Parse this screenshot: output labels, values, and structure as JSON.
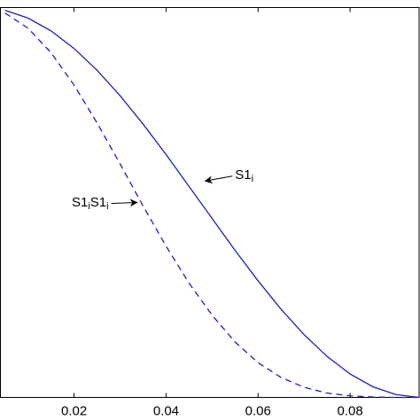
{
  "chart_data": {
    "type": "line",
    "x": [
      0.005,
      0.01,
      0.015,
      0.02,
      0.025,
      0.03,
      0.035,
      0.04,
      0.045,
      0.05,
      0.055,
      0.06,
      0.065,
      0.07,
      0.075,
      0.08,
      0.085,
      0.09,
      0.095
    ],
    "series": [
      {
        "color": "#1f1fb4",
        "style": "solid",
        "values": [
          0.993,
          0.973,
          0.94,
          0.895,
          0.839,
          0.774,
          0.701,
          0.623,
          0.541,
          0.459,
          0.377,
          0.299,
          0.226,
          0.161,
          0.105,
          0.06,
          0.027,
          0.007,
          0
        ]
      },
      {
        "color": "#1f1fb4",
        "style": "dashed",
        "values": [
          0.986,
          0.947,
          0.884,
          0.801,
          0.704,
          0.599,
          0.491,
          0.388,
          0.293,
          0.211,
          0.142,
          0.089,
          0.051,
          0.026,
          0.011,
          0.004,
          0.001,
          0,
          0
        ]
      }
    ],
    "xlim": [
      0.004,
      0.095
    ],
    "ylim": [
      0,
      1
    ],
    "xticks": [
      0.02,
      0.04,
      0.06,
      0.08
    ],
    "annotations": [
      {
        "parts": [
          "S1",
          "i"
        ],
        "x": 0.055,
        "y": 0.56,
        "arrow_to": [
          0.0485,
          0.555
        ]
      },
      {
        "parts": [
          "S1",
          "i",
          "S1",
          "i"
        ],
        "x": 0.0195,
        "y": 0.49,
        "arrow_to": [
          0.0337,
          0.5
        ]
      }
    ]
  }
}
